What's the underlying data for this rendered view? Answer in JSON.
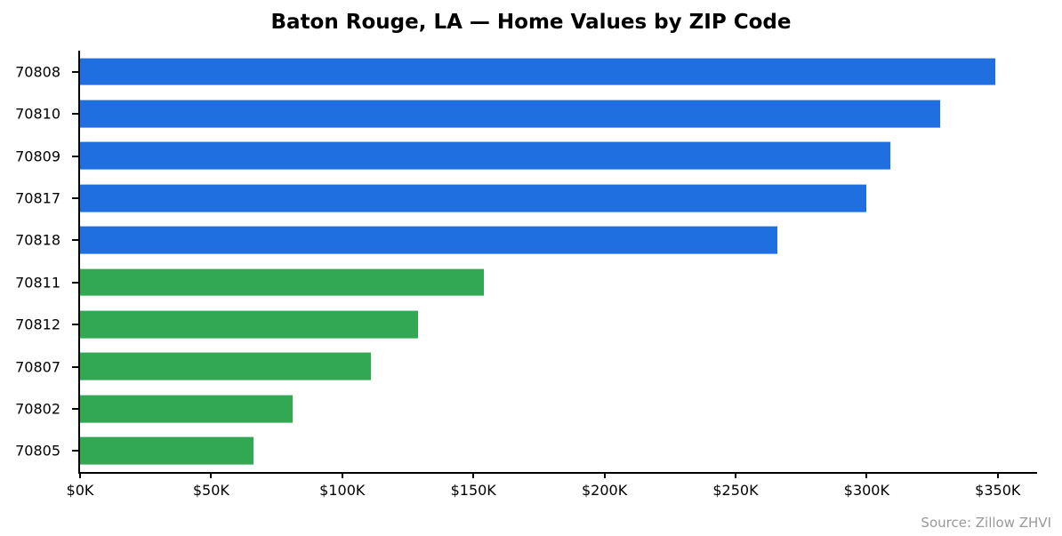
{
  "title": "Baton Rouge, LA — Home Values by ZIP Code",
  "source_note": "Source: Zillow ZHVI",
  "colors": {
    "bar_blue": "#1f6fe0",
    "bar_green": "#33a853",
    "axis": "#000000",
    "source_text": "#999999",
    "background": "#ffffff"
  },
  "chart_data": {
    "type": "bar",
    "orientation": "horizontal",
    "title": "Baton Rouge, LA — Home Values by ZIP Code",
    "categories": [
      "70808",
      "70810",
      "70809",
      "70817",
      "70818",
      "70811",
      "70812",
      "70807",
      "70802",
      "70805"
    ],
    "values": [
      349000,
      328000,
      309000,
      300000,
      266000,
      154000,
      129000,
      111000,
      81000,
      66000
    ],
    "values_unit": "USD",
    "bar_colors": [
      "#1f6fe0",
      "#1f6fe0",
      "#1f6fe0",
      "#1f6fe0",
      "#1f6fe0",
      "#33a853",
      "#33a853",
      "#33a853",
      "#33a853",
      "#33a853"
    ],
    "xlabel": "",
    "ylabel": "",
    "xlim": [
      0,
      365000
    ],
    "x_tick_values": [
      0,
      50000,
      100000,
      150000,
      200000,
      250000,
      300000,
      350000
    ],
    "x_tick_labels": [
      "$0K",
      "$50K",
      "$100K",
      "$150K",
      "$200K",
      "$250K",
      "$300K",
      "$350K"
    ],
    "grid": false,
    "legend": null
  }
}
